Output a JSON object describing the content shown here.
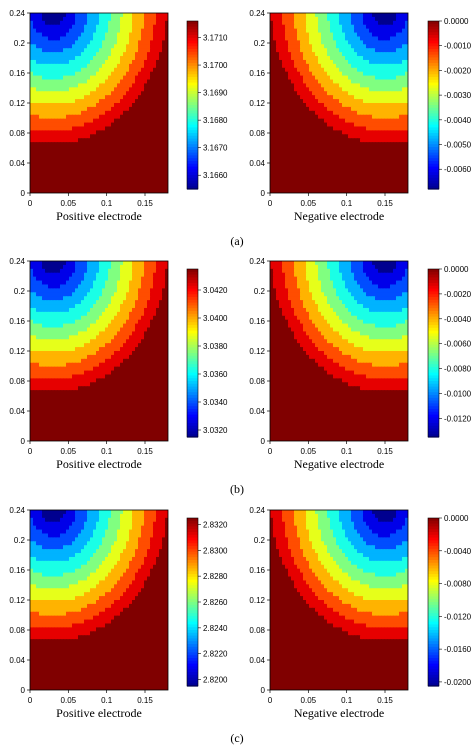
{
  "chart_data": [
    {
      "type": "heatmap",
      "panel": "a",
      "side": "positive",
      "xlabel": "Positive electrode",
      "x_ticks": [
        "0",
        "0.05",
        "0.1",
        "0.15"
      ],
      "y_ticks": [
        "0",
        "0.04",
        "0.08",
        "0.12",
        "0.16",
        "0.2",
        "0.24"
      ],
      "xlim": [
        0,
        0.18
      ],
      "ylim": [
        0,
        0.24
      ],
      "colorbar": {
        "min": 3.1655,
        "max": 3.1716,
        "ticks": [
          "3.1660",
          "3.1670",
          "3.1680",
          "3.1690",
          "3.1700",
          "3.1710"
        ],
        "tick_values": [
          3.166,
          3.167,
          3.168,
          3.169,
          3.17,
          3.171
        ]
      },
      "low_region": "top-left",
      "levels": 11
    },
    {
      "type": "heatmap",
      "panel": "a",
      "side": "negative",
      "xlabel": "Negative electrode",
      "x_ticks": [
        "0",
        "0.05",
        "0.1",
        "0.15"
      ],
      "y_ticks": [
        "0",
        "0.04",
        "0.08",
        "0.12",
        "0.16",
        "0.2",
        "0.24"
      ],
      "xlim": [
        0,
        0.18
      ],
      "ylim": [
        0,
        0.24
      ],
      "colorbar": {
        "min": -0.0068,
        "max": 0.0,
        "ticks": [
          "0.0000",
          "-0.0010",
          "-0.0020",
          "-0.0030",
          "-0.0040",
          "-0.0050",
          "-0.0060"
        ],
        "tick_values": [
          0.0,
          -0.001,
          -0.002,
          -0.003,
          -0.004,
          -0.005,
          -0.006
        ]
      },
      "high_region": "top-right",
      "levels": 11
    },
    {
      "type": "heatmap",
      "panel": "b",
      "side": "positive",
      "xlabel": "Positive electrode",
      "x_ticks": [
        "0",
        "0.05",
        "0.1",
        "0.15"
      ],
      "y_ticks": [
        "0",
        "0.04",
        "0.08",
        "0.12",
        "0.16",
        "0.2",
        "0.24"
      ],
      "xlim": [
        0,
        0.18
      ],
      "ylim": [
        0,
        0.24
      ],
      "colorbar": {
        "min": 3.0315,
        "max": 3.0435,
        "ticks": [
          "3.0420",
          "3.0400",
          "3.0380",
          "3.0360",
          "3.0340",
          "3.0320"
        ],
        "tick_values": [
          3.042,
          3.04,
          3.038,
          3.036,
          3.034,
          3.032
        ]
      },
      "low_region": "top-left",
      "levels": 11
    },
    {
      "type": "heatmap",
      "panel": "b",
      "side": "negative",
      "xlabel": "Negative electrode",
      "x_ticks": [
        "0",
        "0.05",
        "0.1",
        "0.15"
      ],
      "y_ticks": [
        "0",
        "0.04",
        "0.08",
        "0.12",
        "0.16",
        "0.2",
        "0.24"
      ],
      "xlim": [
        0,
        0.18
      ],
      "ylim": [
        0,
        0.24
      ],
      "colorbar": {
        "min": -0.0135,
        "max": 0.0,
        "ticks": [
          "0.0000",
          "-0.0020",
          "-0.0040",
          "-0.0060",
          "-0.0080",
          "-0.0100",
          "-0.0120"
        ],
        "tick_values": [
          0.0,
          -0.002,
          -0.004,
          -0.006,
          -0.008,
          -0.01,
          -0.012
        ]
      },
      "high_region": "top-right",
      "levels": 11
    },
    {
      "type": "heatmap",
      "panel": "c",
      "side": "positive",
      "xlabel": "Positive electrode",
      "x_ticks": [
        "0",
        "0.05",
        "0.1",
        "0.15"
      ],
      "y_ticks": [
        "0",
        "0.04",
        "0.08",
        "0.12",
        "0.16",
        "0.2",
        "0.24"
      ],
      "xlim": [
        0,
        0.18
      ],
      "ylim": [
        0,
        0.24
      ],
      "colorbar": {
        "min": 2.8195,
        "max": 2.8325,
        "ticks": [
          "2.8320",
          "2.8300",
          "2.8280",
          "2.8260",
          "2.8240",
          "2.8220",
          "2.8200"
        ],
        "tick_values": [
          2.832,
          2.83,
          2.828,
          2.826,
          2.824,
          2.822,
          2.82
        ]
      },
      "low_region": "top-left",
      "levels": 11
    },
    {
      "type": "heatmap",
      "panel": "c",
      "side": "negative",
      "xlabel": "Negative electrode",
      "x_ticks": [
        "0",
        "0.05",
        "0.1",
        "0.15"
      ],
      "y_ticks": [
        "0",
        "0.04",
        "0.08",
        "0.12",
        "0.16",
        "0.2",
        "0.24"
      ],
      "xlim": [
        0,
        0.18
      ],
      "ylim": [
        0,
        0.24
      ],
      "colorbar": {
        "min": -0.0205,
        "max": 0.0,
        "ticks": [
          "0.0000",
          "-0.0040",
          "-0.0080",
          "-0.0120",
          "-0.0160",
          "-0.0200"
        ],
        "tick_values": [
          0.0,
          -0.004,
          -0.008,
          -0.012,
          -0.016,
          -0.02
        ]
      },
      "high_region": "top-right",
      "levels": 11
    }
  ],
  "captions": [
    "(a)",
    "(b)",
    "(c)"
  ],
  "colormap": [
    "#00008f",
    "#0000ff",
    "#0080ff",
    "#00ffff",
    "#80ff80",
    "#ffff00",
    "#ff8000",
    "#ff0000",
    "#800000"
  ]
}
